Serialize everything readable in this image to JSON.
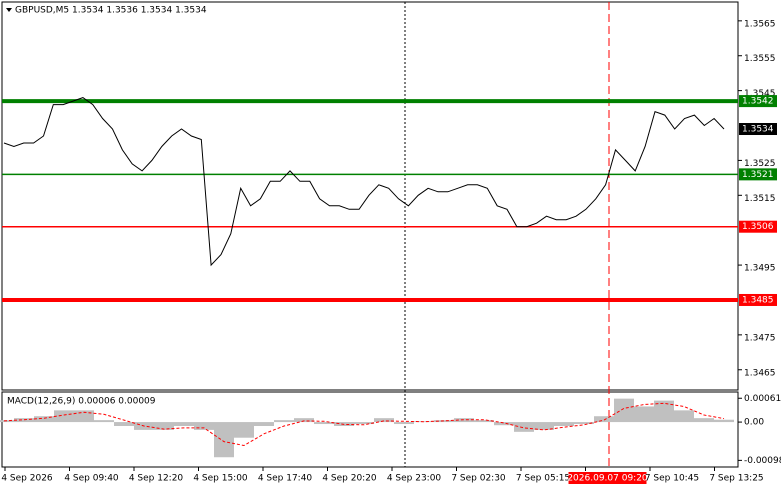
{
  "chart_data": [
    {
      "type": "line",
      "title": "GBPUSD,M5  1.3534 1.3536 1.3534 1.3534",
      "color": "#000000",
      "values": [
        1.353,
        1.3529,
        1.353,
        1.353,
        1.3532,
        1.3541,
        1.3541,
        1.3542,
        1.3543,
        1.3541,
        1.3537,
        1.3534,
        1.3528,
        1.3524,
        1.3522,
        1.3525,
        1.3529,
        1.3532,
        1.3534,
        1.3532,
        1.3531,
        1.3495,
        1.3498,
        1.3504,
        1.3517,
        1.3512,
        1.3514,
        1.3519,
        1.3519,
        1.3522,
        1.3519,
        1.3519,
        1.3514,
        1.3512,
        1.3512,
        1.3511,
        1.3511,
        1.3515,
        1.3518,
        1.3517,
        1.3514,
        1.3512,
        1.3515,
        1.3517,
        1.3516,
        1.3516,
        1.3517,
        1.3518,
        1.3518,
        1.3517,
        1.3512,
        1.3511,
        1.3506,
        1.3506,
        1.3507,
        1.3509,
        1.3508,
        1.3508,
        1.3509,
        1.3511,
        1.3514,
        1.3518,
        1.3528,
        1.3525,
        1.3522,
        1.3529,
        1.3539,
        1.3538,
        1.3534,
        1.3537,
        1.3538,
        1.3535,
        1.3537,
        1.3534
      ],
      "ylim": [
        1.34592,
        1.35704
      ],
      "yticks": [
        1.3565,
        1.3555,
        1.3545,
        1.3525,
        1.3515,
        1.3495,
        1.3475,
        1.3465
      ],
      "levels": [
        {
          "value": 1.3542,
          "color": "#008000",
          "width": 4
        },
        {
          "value": 1.3521,
          "color": "#008000",
          "width": 1.5
        },
        {
          "value": 1.3506,
          "color": "#ff0000",
          "width": 1.5
        },
        {
          "value": 1.3485,
          "color": "#ff0000",
          "width": 4
        }
      ],
      "current": 1.3534,
      "x_labels": [
        "4 Sep 2026",
        "4 Sep 09:40",
        "4 Sep 12:20",
        "4 Sep 15:00",
        "4 Sep 17:40",
        "4 Sep 20:20",
        "4 Sep 23:00",
        "7 Sep 02:30",
        "7 Sep 05:15",
        "2026.09.07 09:20",
        "7 Sep 10:45",
        "7 Sep 13:25"
      ]
    },
    {
      "type": "macd",
      "title": "MACD(12,26,9) 0.00006 0.00009",
      "series": [
        {
          "color": "#c0c0c0",
          "values": [
            5e-05,
            0.0001,
            0.00015,
            0.0003,
            0.0003,
            5e-05,
            -0.0001,
            -0.0002,
            -0.0002,
            -0.0001,
            -0.0002,
            -0.0009,
            -0.0004,
            -0.0001,
            5e-05,
            0.0001,
            -5e-05,
            -0.0001,
            -5e-05,
            0.0001,
            -5e-05,
            2e-05,
            5e-05,
            0.0001,
            5e-05,
            -8e-05,
            -0.00025,
            -0.0002,
            -0.0001,
            -5e-05,
            0.00015,
            0.0006,
            0.0004,
            0.00055,
            0.0003,
            0.0001,
            6e-05
          ]
        },
        {
          "color": "#ff0000",
          "values": [
            3e-05,
            6e-05,
            0.0001,
            0.00018,
            0.00025,
            0.0002,
            5e-05,
            -0.0001,
            -0.00018,
            -0.00015,
            -0.00015,
            -0.0005,
            -0.0006,
            -0.0003,
            -0.0001,
            3e-05,
            2e-05,
            -6e-05,
            -7e-05,
            3e-05,
            2e-05,
            1e-05,
            3e-05,
            6e-05,
            6e-05,
            -2e-05,
            -0.00015,
            -0.0002,
            -0.00013,
            -7e-05,
            5e-05,
            0.00035,
            0.00045,
            0.00048,
            0.0004,
            0.00018,
            9e-05
          ]
        }
      ],
      "ylim": [
        -0.00115,
        0.00077
      ],
      "yticks": [
        0.00061,
        {
          "value": 0,
          "label": "0.00"
        },
        -0.00098
      ]
    }
  ]
}
